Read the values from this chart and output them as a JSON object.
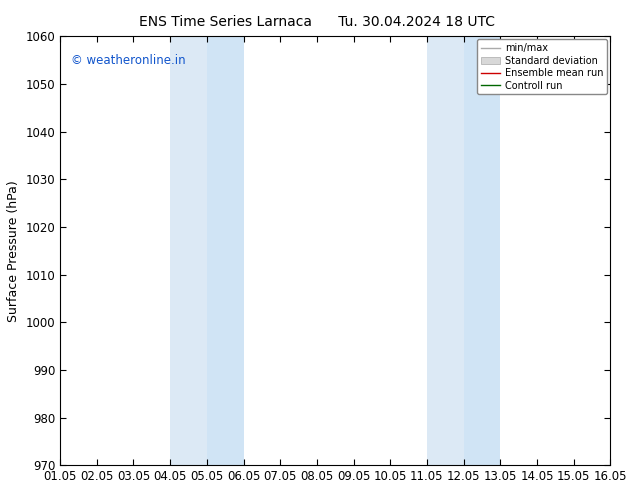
{
  "title_left": "ENS Time Series Larnaca",
  "title_right": "Tu. 30.04.2024 18 UTC",
  "ylabel": "Surface Pressure (hPa)",
  "ylim": [
    970,
    1060
  ],
  "yticks": [
    970,
    980,
    990,
    1000,
    1010,
    1020,
    1030,
    1040,
    1050,
    1060
  ],
  "xlim_start": 0,
  "xlim_end": 15,
  "xtick_labels": [
    "01.05",
    "02.05",
    "03.05",
    "04.05",
    "05.05",
    "06.05",
    "07.05",
    "08.05",
    "09.05",
    "10.05",
    "11.05",
    "12.05",
    "13.05",
    "14.05",
    "15.05",
    "16.05"
  ],
  "shaded_bands": [
    {
      "xmin": 3,
      "xmax": 4,
      "color": "#dce9f5"
    },
    {
      "xmin": 4,
      "xmax": 5,
      "color": "#d0e4f5"
    },
    {
      "xmin": 10,
      "xmax": 11,
      "color": "#dce9f5"
    },
    {
      "xmin": 11,
      "xmax": 12,
      "color": "#d0e4f5"
    }
  ],
  "watermark_text": "© weatheronline.in",
  "watermark_color": "#1155cc",
  "legend_labels": [
    "min/max",
    "Standard deviation",
    "Ensemble mean run",
    "Controll run"
  ],
  "legend_line_colors": [
    "#aaaaaa",
    "#cccccc",
    "#cc0000",
    "#006600"
  ],
  "background_color": "#ffffff",
  "plot_bg_color": "#ffffff",
  "title_fontsize": 10,
  "axis_fontsize": 9,
  "tick_fontsize": 8.5
}
